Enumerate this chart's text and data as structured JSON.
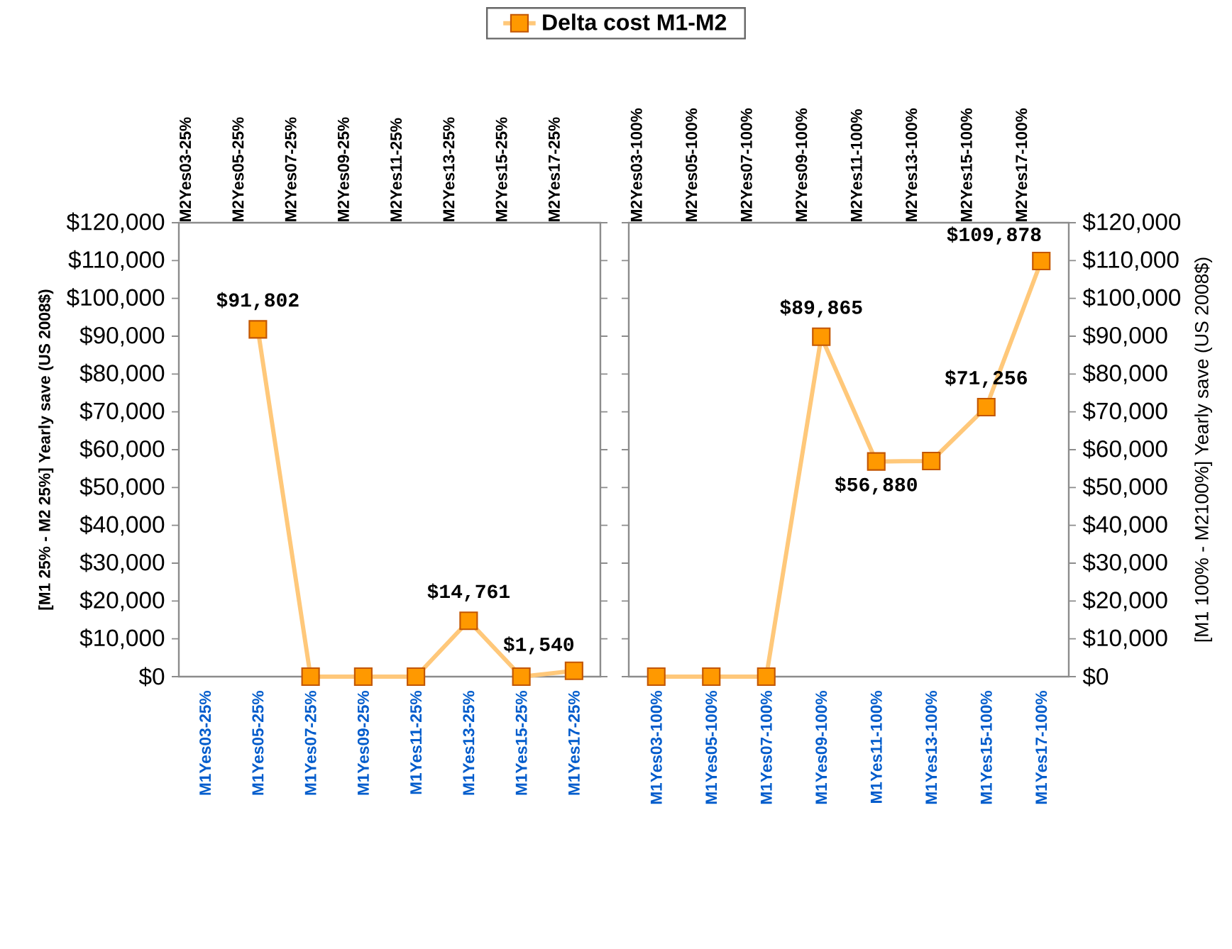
{
  "chart_data": [
    {
      "type": "line",
      "ylabel": "[M1 25% - M2 25%]   Yearly save (US 2008$)",
      "categories": [
        "M1Yes03-25%",
        "M1Yes05-25%",
        "M1Yes07-25%",
        "M1Yes09-25%",
        "M1Yes11-25%",
        "M1Yes13-25%",
        "M1Yes15-25%",
        "M1Yes17-25%"
      ],
      "annotations": [
        "M2Yes03-25%",
        "M2Yes05-25%",
        "M2Yes07-25%",
        "M2Yes09-25%",
        "M2Yes11-25%",
        "M2Yes13-25%",
        "M2Yes15-25%",
        "M2Yes17-25%"
      ],
      "ylim": [
        0,
        120000
      ],
      "yticks": [
        {
          "value": 0,
          "label": "$0"
        },
        {
          "value": 10000,
          "label": "$10,000"
        },
        {
          "value": 20000,
          "label": "$20,000"
        },
        {
          "value": 30000,
          "label": "$30,000"
        },
        {
          "value": 40000,
          "label": "$40,000"
        },
        {
          "value": 50000,
          "label": "$50,000"
        },
        {
          "value": 60000,
          "label": "$60,000"
        },
        {
          "value": 70000,
          "label": "$70,000"
        },
        {
          "value": 80000,
          "label": "$80,000"
        },
        {
          "value": 90000,
          "label": "$90,000"
        },
        {
          "value": 100000,
          "label": "$100,000"
        },
        {
          "value": 110000,
          "label": "$110,000"
        },
        {
          "value": 120000,
          "label": "$120,000"
        }
      ],
      "marker": "square",
      "legend": "top",
      "series": [
        {
          "name": "Delta cost M1-M2",
          "color": "#ffc87a",
          "colors": [
            "#ff9900",
            "#ff9900",
            "#ff9900",
            "#ff9900",
            "#ff9900",
            "#ff9900",
            "#ff9900",
            "#ff9900"
          ],
          "values": [
            null,
            91802,
            0,
            0,
            0,
            14761,
            0,
            1540
          ],
          "value_labels": [
            null,
            "$91,802",
            null,
            null,
            null,
            "$14,761",
            null,
            "$1,540"
          ]
        }
      ]
    },
    {
      "type": "line",
      "y2label": "[M1 100% - M2100%]   Yearly save (US 2008$)",
      "categories": [
        "M1Yes03-100%",
        "M1Yes05-100%",
        "M1Yes07-100%",
        "M1Yes09-100%",
        "M1Yes11-100%",
        "M1Yes13-100%",
        "M1Yes15-100%",
        "M1Yes17-100%"
      ],
      "annotations": [
        "M2Yes03-100%",
        "M2Yes05-100%",
        "M2Yes07-100%",
        "M2Yes09-100%",
        "M2Yes11-100%",
        "M2Yes13-100%",
        "M2Yes15-100%",
        "M2Yes17-100%"
      ],
      "y2lim": [
        0,
        120000
      ],
      "y2ticks": [
        {
          "value": 0,
          "label": "$0"
        },
        {
          "value": 10000,
          "label": "$10,000"
        },
        {
          "value": 20000,
          "label": "$20,000"
        },
        {
          "value": 30000,
          "label": "$30,000"
        },
        {
          "value": 40000,
          "label": "$40,000"
        },
        {
          "value": 50000,
          "label": "$50,000"
        },
        {
          "value": 60000,
          "label": "$60,000"
        },
        {
          "value": 70000,
          "label": "$70,000"
        },
        {
          "value": 80000,
          "label": "$80,000"
        },
        {
          "value": 90000,
          "label": "$90,000"
        },
        {
          "value": 100000,
          "label": "$100,000"
        },
        {
          "value": 110000,
          "label": "$110,000"
        },
        {
          "value": 120000,
          "label": "$120,000"
        }
      ],
      "marker": "square",
      "series": [
        {
          "axis": "y2",
          "color": "#ffc87a",
          "colors": [
            "#ff9900",
            "#ff9900",
            "#ff9900",
            "#ff9900",
            "#ff9900",
            "#ff9900",
            "#ff9900",
            "#ff9900"
          ],
          "values": [
            0,
            0,
            0,
            89865,
            56880,
            57000,
            71256,
            109878
          ],
          "value_labels": [
            null,
            null,
            null,
            "$89,865",
            "$56,880",
            null,
            "$71,256",
            "$109,878"
          ]
        }
      ]
    }
  ]
}
